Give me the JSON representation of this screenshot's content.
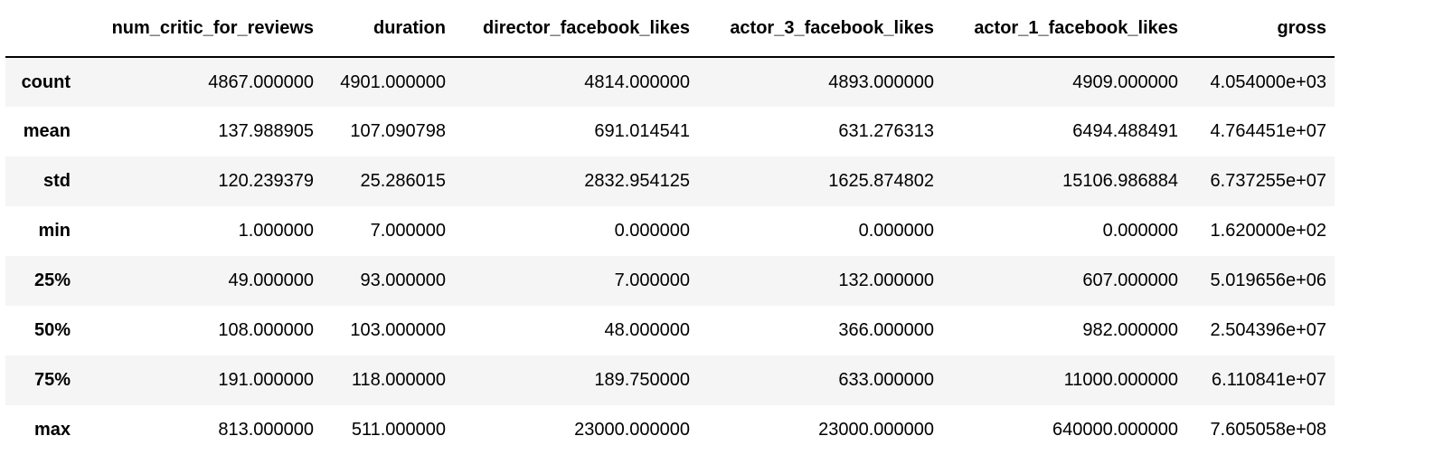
{
  "table": {
    "index_header": "",
    "columns": [
      "num_critic_for_reviews",
      "duration",
      "director_facebook_likes",
      "actor_3_facebook_likes",
      "actor_1_facebook_likes",
      "gross"
    ],
    "rows": [
      {
        "label": "count",
        "cells": [
          "4867.000000",
          "4901.000000",
          "4814.000000",
          "4893.000000",
          "4909.000000",
          "4.054000e+03"
        ]
      },
      {
        "label": "mean",
        "cells": [
          "137.988905",
          "107.090798",
          "691.014541",
          "631.276313",
          "6494.488491",
          "4.764451e+07"
        ]
      },
      {
        "label": "std",
        "cells": [
          "120.239379",
          "25.286015",
          "2832.954125",
          "1625.874802",
          "15106.986884",
          "6.737255e+07"
        ]
      },
      {
        "label": "min",
        "cells": [
          "1.000000",
          "7.000000",
          "0.000000",
          "0.000000",
          "0.000000",
          "1.620000e+02"
        ]
      },
      {
        "label": "25%",
        "cells": [
          "49.000000",
          "93.000000",
          "7.000000",
          "132.000000",
          "607.000000",
          "5.019656e+06"
        ]
      },
      {
        "label": "50%",
        "cells": [
          "108.000000",
          "103.000000",
          "48.000000",
          "366.000000",
          "982.000000",
          "2.504396e+07"
        ]
      },
      {
        "label": "75%",
        "cells": [
          "191.000000",
          "118.000000",
          "189.750000",
          "633.000000",
          "11000.000000",
          "6.110841e+07"
        ]
      },
      {
        "label": "max",
        "cells": [
          "813.000000",
          "511.000000",
          "23000.000000",
          "23000.000000",
          "640000.000000",
          "7.605058e+08"
        ]
      }
    ]
  },
  "colors": {
    "stripe": "#f5f5f5",
    "header_rule": "#000000",
    "text": "#000000"
  }
}
